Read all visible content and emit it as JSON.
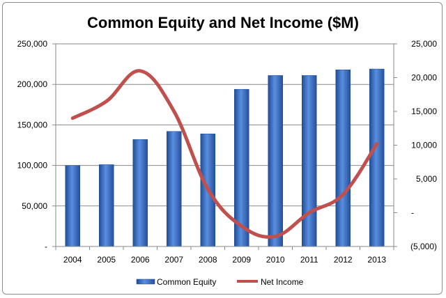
{
  "chart_data": {
    "type": "bar+line",
    "title": "Common Equity and Net Income ($M)",
    "categories": [
      "2004",
      "2005",
      "2006",
      "2007",
      "2008",
      "2009",
      "2010",
      "2011",
      "2012",
      "2013"
    ],
    "series": [
      {
        "name": "Common Equity",
        "type": "bar",
        "axis": "left",
        "color": "#3d6fc0",
        "values": [
          100000,
          101000,
          132000,
          142000,
          139000,
          194000,
          211000,
          211000,
          218000,
          219000
        ]
      },
      {
        "name": "Net Income",
        "type": "line",
        "axis": "right",
        "color": "#c0504d",
        "values": [
          14000,
          16500,
          21000,
          15000,
          3500,
          -2000,
          -3500,
          0,
          2700,
          10200
        ]
      }
    ],
    "y_left": {
      "min": 0,
      "max": 250000,
      "step": 50000,
      "tick_labels": [
        "-",
        "50,000",
        "100,000",
        "150,000",
        "200,000",
        "250,000"
      ]
    },
    "y_right": {
      "min": -5000,
      "max": 25000,
      "step": 5000,
      "tick_labels": [
        "(5,000)",
        "-",
        "5,000",
        "10,000",
        "15,000",
        "20,000",
        "25,000"
      ]
    },
    "grid": true,
    "legend": "bottom"
  }
}
